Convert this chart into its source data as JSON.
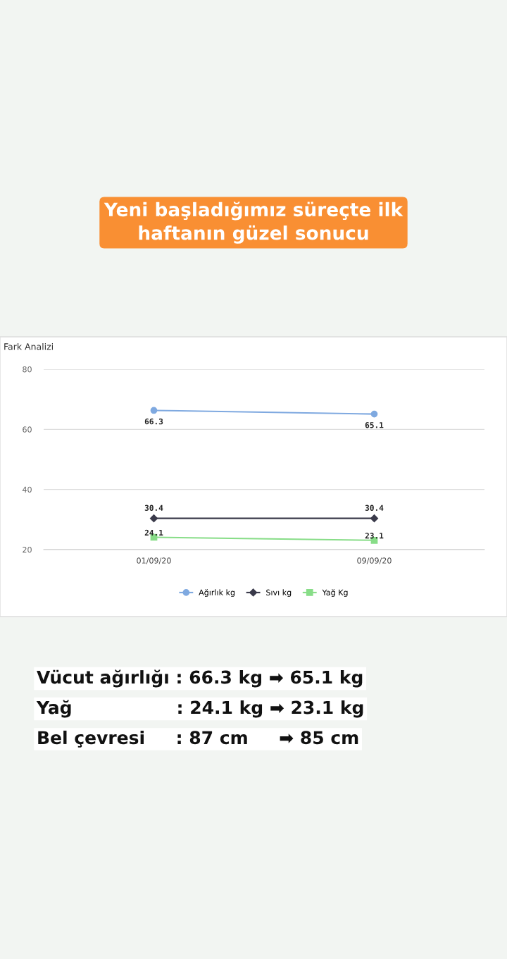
{
  "chart_data": {
    "type": "line",
    "title": "Fark Analizi",
    "categories": [
      "01/09/20",
      "09/09/20"
    ],
    "series": [
      {
        "name": "Ağırlık kg",
        "color": "#7fa9e0",
        "marker": "circle",
        "values": [
          66.3,
          65.1
        ]
      },
      {
        "name": "Sıvı kg",
        "color": "#3a3a4a",
        "marker": "diamond",
        "values": [
          30.4,
          30.4
        ]
      },
      {
        "name": "Yağ Kg",
        "color": "#88dd88",
        "marker": "square",
        "values": [
          24.1,
          23.1
        ]
      }
    ],
    "ylim": [
      20,
      80
    ],
    "yticks": [
      20,
      40,
      60,
      80
    ],
    "grid": "y",
    "legend": "bottom",
    "data_labels": true,
    "line_style": "solid",
    "annotations": [
      "Yeni başladığımız süreçte ilk\nhaftanın güzel sonucu",
      "Vücut ağırlığı : 66.3 kg ➡ 65.1 kg",
      "Yağ                 : 24.1 kg ➡ 23.1 kg",
      "Bel çevresi     : 87 cm     ➡ 85 cm"
    ]
  }
}
